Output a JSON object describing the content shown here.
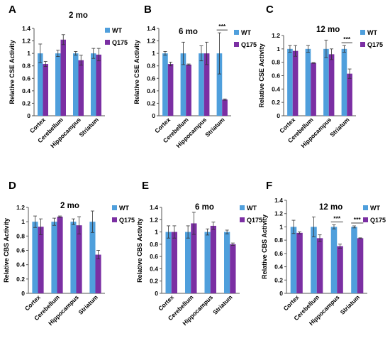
{
  "figure": {
    "panel_colors": {
      "WT": "#4f9fdc",
      "Q175": "#7b2fa3"
    }
  },
  "chart_data": [
    {
      "panel": "A",
      "type": "bar",
      "title": "2 mo",
      "ylabel": "Relative CSE Activity",
      "ylim": [
        0,
        1.4
      ],
      "yticks": [
        "0",
        "0.2",
        "0.4",
        "0.6",
        "0.8",
        "1",
        "1.2",
        "1.4"
      ],
      "categories": [
        "Cortex",
        "Cerebellum",
        "Hippocampus",
        "Striatum"
      ],
      "legend": [
        "WT",
        "Q175"
      ],
      "series": [
        {
          "name": "WT",
          "values": [
            1.0,
            1.0,
            1.0,
            1.0
          ],
          "errors": [
            0.15,
            0.05,
            0.03,
            0.08
          ]
        },
        {
          "name": "Q175",
          "values": [
            0.83,
            1.22,
            0.89,
            0.98
          ],
          "errors": [
            0.04,
            0.08,
            0.08,
            0.1
          ]
        }
      ],
      "significance": []
    },
    {
      "panel": "B",
      "type": "bar",
      "title": "6 mo",
      "ylabel": "Relative CSE Activity",
      "ylim": [
        0,
        1.4
      ],
      "yticks": [
        "0",
        "0.2",
        "0.4",
        "0.6",
        "0.8",
        "1",
        "1.2",
        "1.4"
      ],
      "categories": [
        "Cortex",
        "Cerebellum",
        "Hippocampus",
        "Striatum"
      ],
      "legend": [
        "WT",
        "Q175"
      ],
      "series": [
        {
          "name": "WT",
          "values": [
            1.0,
            1.0,
            1.0,
            1.0
          ],
          "errors": [
            0.03,
            0.18,
            0.12,
            0.33
          ]
        },
        {
          "name": "Q175",
          "values": [
            0.83,
            0.82,
            1.0,
            0.26
          ],
          "errors": [
            0.03,
            0.01,
            0.18,
            0.01
          ]
        }
      ],
      "significance": [
        {
          "category": 3,
          "label": "***"
        }
      ]
    },
    {
      "panel": "C",
      "type": "bar",
      "title": "12 mo",
      "ylabel": "Relative CSE Activity",
      "ylim": [
        0,
        1.2
      ],
      "yticks": [
        "0",
        "0.2",
        "0.4",
        "0.6",
        "0.8",
        "1",
        "1.2"
      ],
      "categories": [
        "Cortex",
        "Cerebellum",
        "Hippocampus",
        "Striatum"
      ],
      "legend": [
        "WT",
        "Q175"
      ],
      "series": [
        {
          "name": "WT",
          "values": [
            1.0,
            1.0,
            1.0,
            1.0
          ],
          "errors": [
            0.05,
            0.05,
            0.13,
            0.05
          ]
        },
        {
          "name": "Q175",
          "values": [
            0.97,
            0.79,
            0.92,
            0.63
          ],
          "errors": [
            0.08,
            0.005,
            0.08,
            0.07
          ]
        }
      ],
      "significance": [
        {
          "category": 3,
          "label": "***"
        }
      ]
    },
    {
      "panel": "D",
      "type": "bar",
      "title": "2 mo",
      "ylabel": "Relative CBS Activity",
      "ylim": [
        0,
        1.2
      ],
      "yticks": [
        "0",
        "0.2",
        "0.4",
        "0.6",
        "0.8",
        "1",
        "1.2"
      ],
      "categories": [
        "Cortex",
        "Cerebellum",
        "Hippocampus",
        "Striatum"
      ],
      "legend": [
        "WT",
        "Q175"
      ],
      "series": [
        {
          "name": "WT",
          "values": [
            1.0,
            1.0,
            1.0,
            1.0
          ],
          "errors": [
            0.08,
            0.05,
            0.04,
            0.15
          ]
        },
        {
          "name": "Q175",
          "values": [
            0.93,
            1.07,
            0.95,
            0.54
          ],
          "errors": [
            0.11,
            0.01,
            0.12,
            0.06
          ]
        }
      ],
      "significance": []
    },
    {
      "panel": "E",
      "type": "bar",
      "title": "6 mo",
      "ylabel": "Relative CBS Activity",
      "ylim": [
        0,
        1.4
      ],
      "yticks": [
        "0",
        "0.2",
        "0.4",
        "0.6",
        "0.8",
        "1",
        "1.2",
        "1.4"
      ],
      "categories": [
        "Cortex",
        "Cerebellum",
        "Hippocampus",
        "Striatum"
      ],
      "legend": [
        "WT",
        "Q175"
      ],
      "series": [
        {
          "name": "WT",
          "values": [
            1.0,
            1.0,
            1.0,
            1.0
          ],
          "errors": [
            0.1,
            0.1,
            0.05,
            0.03
          ]
        },
        {
          "name": "Q175",
          "values": [
            1.0,
            1.14,
            1.1,
            0.8
          ],
          "errors": [
            0.1,
            0.18,
            0.06,
            0.02
          ]
        }
      ],
      "significance": []
    },
    {
      "panel": "F",
      "type": "bar",
      "title": "12 mo",
      "ylabel": "Relative CBS Activity",
      "ylim": [
        0,
        1.4
      ],
      "yticks": [
        "0",
        "0.2",
        "0.4",
        "0.6",
        "0.8",
        "1",
        "1.2",
        "1.4"
      ],
      "categories": [
        "Cortex",
        "Cerebellum",
        "Hippocampus",
        "Striatum"
      ],
      "legend": [
        "WT",
        "Q175"
      ],
      "series": [
        {
          "name": "WT",
          "values": [
            1.0,
            1.0,
            1.0,
            1.0
          ],
          "errors": [
            0.1,
            0.15,
            0.03,
            0.015
          ]
        },
        {
          "name": "Q175",
          "values": [
            0.91,
            0.83,
            0.71,
            0.83
          ],
          "errors": [
            0.015,
            0.05,
            0.03,
            0.005
          ]
        }
      ],
      "significance": [
        {
          "category": 2,
          "label": "***"
        },
        {
          "category": 3,
          "label": "***"
        }
      ]
    }
  ]
}
